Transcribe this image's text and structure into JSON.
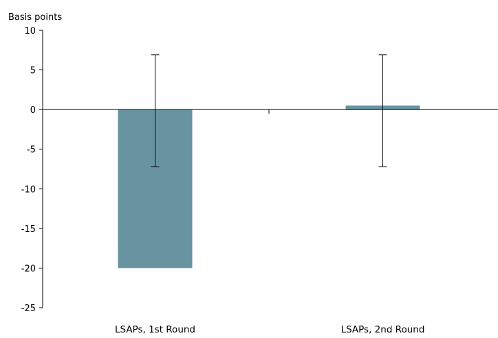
{
  "chart_data": {
    "type": "bar",
    "title": "",
    "xlabel": "",
    "ylabel": "Basis points",
    "ylim": [
      -25,
      10
    ],
    "yticks": [
      10,
      5,
      0,
      -5,
      -10,
      -15,
      -20,
      -25
    ],
    "categories": [
      "LSAPs, 1st Round",
      "LSAPs, 2nd Round"
    ],
    "values": [
      -20,
      0.5
    ],
    "error_bars": [
      {
        "low": -7.2,
        "high": 6.9
      },
      {
        "low": -7.2,
        "high": 6.9
      }
    ],
    "grid": false,
    "legend": "none",
    "bar_color": "#6794a0"
  }
}
